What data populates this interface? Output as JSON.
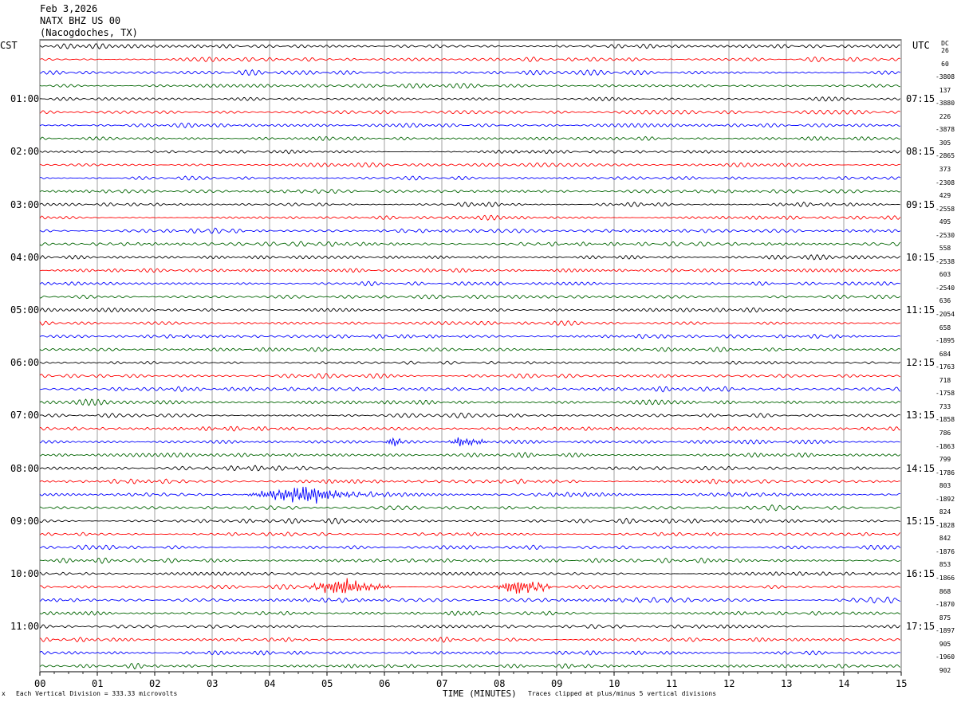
{
  "header": {
    "date": "Feb 3,2026",
    "station": "NATX BHZ US 00",
    "location": "(Nacogdoches, TX)"
  },
  "left_tz": "CST",
  "right_tz": "UTC",
  "dc_header": "DC",
  "footer": {
    "scale": "Each Vertical Division =  333.33 microvolts",
    "clip": "Traces clipped at plus/minus 5 vertical divisions",
    "corner": "x"
  },
  "colors": [
    "#000000",
    "#ff0000",
    "#0000ff",
    "#006400"
  ],
  "chart_data": {
    "type": "line",
    "title": "",
    "xlabel": "TIME (MINUTES)",
    "ylabel": "",
    "xlim": [
      0,
      15
    ],
    "x_ticks": [
      "00",
      "01",
      "02",
      "03",
      "04",
      "05",
      "06",
      "07",
      "08",
      "09",
      "10",
      "11",
      "12",
      "13",
      "14",
      "15"
    ],
    "grid": true,
    "trace_count": 48,
    "trace_minutes": 15,
    "left_time_labels": [
      "01:00",
      "02:00",
      "03:00",
      "04:00",
      "05:00",
      "06:00",
      "07:00",
      "08:00",
      "09:00",
      "10:00",
      "11:00"
    ],
    "right_time_labels": [
      "07:15",
      "08:15",
      "09:15",
      "10:15",
      "11:15",
      "12:15",
      "13:15",
      "14:15",
      "15:15",
      "16:15",
      "17:15"
    ],
    "dc_offsets": [
      "26",
      "60",
      "-3808",
      "137",
      "-3880",
      "226",
      "-3878",
      "305",
      "-2865",
      "373",
      "-2308",
      "429",
      "-2558",
      "495",
      "-2530",
      "558",
      "-2538",
      "603",
      "-2540",
      "636",
      "-2054",
      "658",
      "-1895",
      "684",
      "-1763",
      "718",
      "-1758",
      "733",
      "-1858",
      "786",
      "-1863",
      "799",
      "-1786",
      "803",
      "-1892",
      "824",
      "-1828",
      "842",
      "-1876",
      "853",
      "-1866",
      "868",
      "-1870",
      "875",
      "-1897",
      "905",
      "-1960",
      "902"
    ],
    "events": [
      {
        "trace": 34,
        "start_min": 3.5,
        "end_min": 6.9,
        "peak_min": 4.7,
        "amplitude": 3.0
      },
      {
        "trace": 41,
        "start_min": 4.6,
        "end_min": 6.1,
        "peak_min": 5.3,
        "amplitude": 2.8
      },
      {
        "trace": 41,
        "start_min": 7.9,
        "end_min": 8.9,
        "peak_min": 8.3,
        "amplitude": 2.6
      },
      {
        "trace": 30,
        "start_min": 6.0,
        "end_min": 6.3,
        "peak_min": 6.1,
        "amplitude": 1.5
      },
      {
        "trace": 30,
        "start_min": 7.1,
        "end_min": 7.8,
        "peak_min": 7.3,
        "amplitude": 1.6
      }
    ]
  }
}
